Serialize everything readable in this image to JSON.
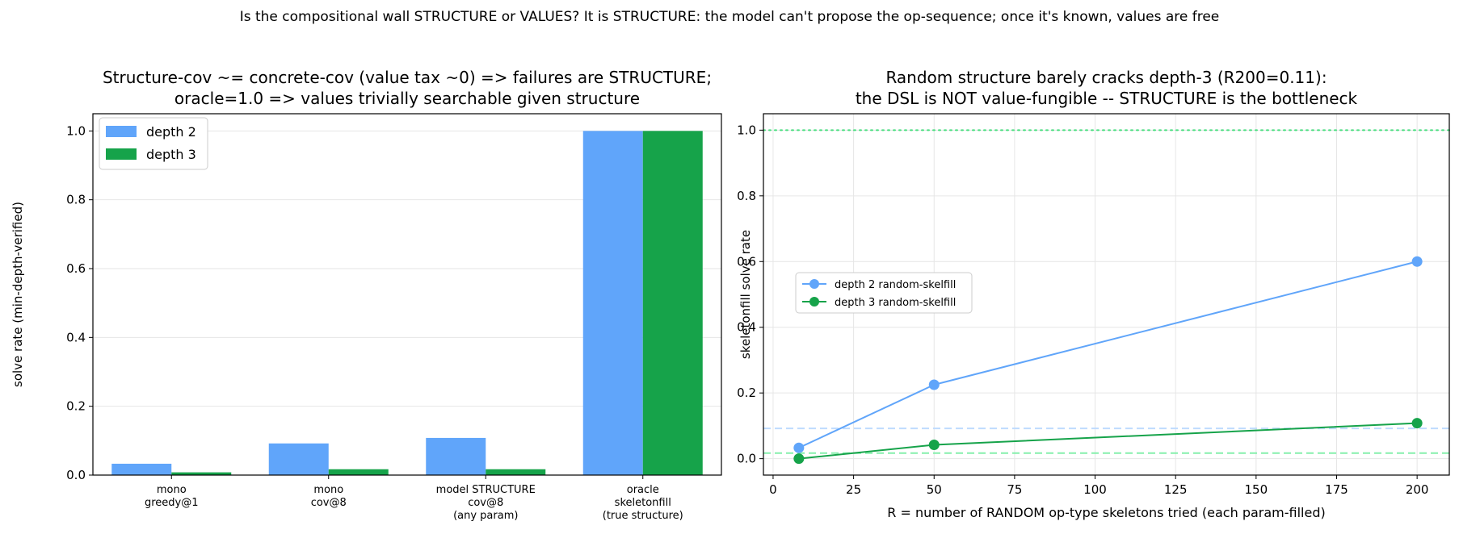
{
  "suptitle": "Is the compositional wall STRUCTURE or VALUES? It is STRUCTURE: the model can't propose the op-sequence; once it's known, values are free",
  "colors": {
    "depth2": "#60a5fa",
    "depth3": "#16a34a",
    "depth2_ref": "#bfdbfe",
    "depth3_ref": "#86efac",
    "oracle_line": "#4ade80"
  },
  "chart_data": [
    {
      "type": "bar",
      "title_lines": [
        "Structure-cov ~= concrete-cov (value tax ~0) => failures are STRUCTURE;",
        "oracle=1.0 => values trivially searchable given structure"
      ],
      "xlabel": "",
      "ylabel": "solve rate (min-depth-verified)",
      "ylim": [
        0,
        1.05
      ],
      "yticks": [
        "0.0",
        "0.2",
        "0.4",
        "0.6",
        "0.8",
        "1.0"
      ],
      "categories": [
        [
          "mono",
          "greedy@1"
        ],
        [
          "mono",
          "cov@8"
        ],
        [
          "model STRUCTURE",
          "cov@8",
          "(any param)"
        ],
        [
          "oracle",
          "skeletonfill",
          "(true structure)"
        ]
      ],
      "series": [
        {
          "name": "depth 2",
          "values": [
            0.033,
            0.092,
            0.108,
            1.0
          ]
        },
        {
          "name": "depth 3",
          "values": [
            0.008,
            0.017,
            0.017,
            1.0
          ]
        }
      ],
      "legend": "upper-left",
      "grid": "y"
    },
    {
      "type": "line",
      "title_lines": [
        "Random structure barely cracks depth-3 (R200=0.11):",
        "the DSL is NOT value-fungible -- STRUCTURE is the bottleneck"
      ],
      "xlabel": "R = number of RANDOM op-type skeletons tried (each param-filled)",
      "ylabel": "skeletonfill solve rate",
      "xlim": [
        -3,
        210
      ],
      "ylim": [
        -0.05,
        1.05
      ],
      "xticks": [
        0,
        25,
        50,
        75,
        100,
        125,
        150,
        175,
        200
      ],
      "yticks": [
        "0.0",
        "0.2",
        "0.4",
        "0.6",
        "0.8",
        "1.0"
      ],
      "series": [
        {
          "name": "depth 2 random-skelfill",
          "x": [
            8,
            50,
            200
          ],
          "y": [
            0.033,
            0.225,
            0.6
          ]
        },
        {
          "name": "depth 3 random-skelfill",
          "x": [
            8,
            50,
            200
          ],
          "y": [
            0.0,
            0.042,
            0.108
          ]
        }
      ],
      "reference_lines": [
        {
          "y": 1.0,
          "style": "dotted",
          "color_key": "oracle_line"
        },
        {
          "y": 0.092,
          "style": "dashed",
          "color_key": "depth2_ref"
        },
        {
          "y": 0.017,
          "style": "dashed",
          "color_key": "depth3_ref"
        }
      ],
      "legend": "center-left",
      "grid": "both"
    }
  ]
}
